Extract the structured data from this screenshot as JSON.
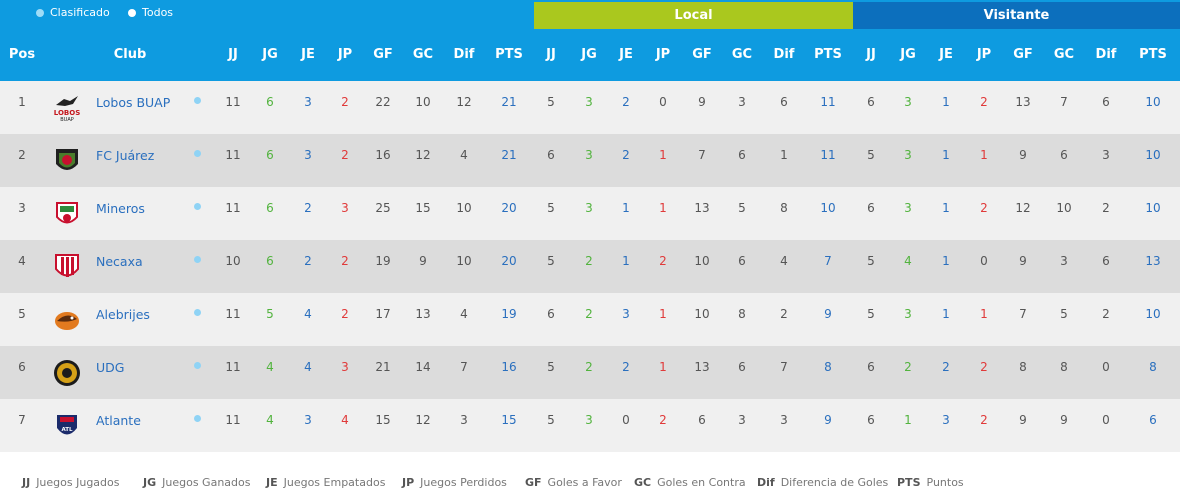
{
  "filters": [
    {
      "label": "Clasificado",
      "dot_color": "#9fdcf7"
    },
    {
      "label": "Todos",
      "dot_color": "#ffffff"
    }
  ],
  "sections": {
    "local": "Local",
    "visitante": "Visitante"
  },
  "headers": {
    "pos": "Pos",
    "club": "Club",
    "cols": [
      "JJ",
      "JG",
      "JE",
      "JP",
      "GF",
      "GC",
      "Dif",
      "PTS",
      "JJ",
      "JG",
      "JE",
      "JP",
      "GF",
      "GC",
      "Dif",
      "PTS",
      "JJ",
      "JG",
      "JE",
      "JP",
      "GF",
      "GC",
      "Dif",
      "PTS"
    ]
  },
  "rows": [
    {
      "pos": "1",
      "club": "Lobos BUAP",
      "crest": "lobos-buap-crest",
      "t": [
        "11",
        "6",
        "3",
        "2",
        "22",
        "10",
        "12",
        "21"
      ],
      "l": [
        "5",
        "3",
        "2",
        "0",
        "9",
        "3",
        "6",
        "11"
      ],
      "v": [
        "6",
        "3",
        "1",
        "2",
        "13",
        "7",
        "6",
        "10"
      ]
    },
    {
      "pos": "2",
      "club": "FC Juárez",
      "crest": "fc-juarez-crest",
      "t": [
        "11",
        "6",
        "3",
        "2",
        "16",
        "12",
        "4",
        "21"
      ],
      "l": [
        "6",
        "3",
        "2",
        "1",
        "7",
        "6",
        "1",
        "11"
      ],
      "v": [
        "5",
        "3",
        "1",
        "1",
        "9",
        "6",
        "3",
        "10"
      ]
    },
    {
      "pos": "3",
      "club": "Mineros",
      "crest": "mineros-crest",
      "t": [
        "11",
        "6",
        "2",
        "3",
        "25",
        "15",
        "10",
        "20"
      ],
      "l": [
        "5",
        "3",
        "1",
        "1",
        "13",
        "5",
        "8",
        "10"
      ],
      "v": [
        "6",
        "3",
        "1",
        "2",
        "12",
        "10",
        "2",
        "10"
      ]
    },
    {
      "pos": "4",
      "club": "Necaxa",
      "crest": "necaxa-crest",
      "t": [
        "10",
        "6",
        "2",
        "2",
        "19",
        "9",
        "10",
        "20"
      ],
      "l": [
        "5",
        "2",
        "1",
        "2",
        "10",
        "6",
        "4",
        "7"
      ],
      "v": [
        "5",
        "4",
        "1",
        "0",
        "9",
        "3",
        "6",
        "13"
      ]
    },
    {
      "pos": "5",
      "club": "Alebrijes",
      "crest": "alebrijes-crest",
      "t": [
        "11",
        "5",
        "4",
        "2",
        "17",
        "13",
        "4",
        "19"
      ],
      "l": [
        "6",
        "2",
        "3",
        "1",
        "10",
        "8",
        "2",
        "9"
      ],
      "v": [
        "5",
        "3",
        "1",
        "1",
        "7",
        "5",
        "2",
        "10"
      ]
    },
    {
      "pos": "6",
      "club": "UDG",
      "crest": "udg-crest",
      "t": [
        "11",
        "4",
        "4",
        "3",
        "21",
        "14",
        "7",
        "16"
      ],
      "l": [
        "5",
        "2",
        "2",
        "1",
        "13",
        "6",
        "7",
        "8"
      ],
      "v": [
        "6",
        "2",
        "2",
        "2",
        "8",
        "8",
        "0",
        "8"
      ]
    },
    {
      "pos": "7",
      "club": "Atlante",
      "crest": "atlante-crest",
      "t": [
        "11",
        "4",
        "3",
        "4",
        "15",
        "12",
        "3",
        "15"
      ],
      "l": [
        "5",
        "3",
        "0",
        "2",
        "6",
        "3",
        "3",
        "9"
      ],
      "v": [
        "6",
        "1",
        "3",
        "2",
        "9",
        "9",
        "0",
        "6"
      ]
    }
  ],
  "glossary": [
    {
      "abbr": "JJ",
      "text": "Juegos Jugados"
    },
    {
      "abbr": "JG",
      "text": "Juegos Ganados"
    },
    {
      "abbr": "JE",
      "text": "Juegos Empatados"
    },
    {
      "abbr": "JP",
      "text": "Juegos Perdidos"
    },
    {
      "abbr": "GF",
      "text": "Goles a Favor"
    },
    {
      "abbr": "GC",
      "text": "Goles en Contra"
    },
    {
      "abbr": "Dif",
      "text": "Diferencia de Goles"
    },
    {
      "abbr": "PTS",
      "text": "Puntos"
    }
  ],
  "colors": {
    "header_blue": "#0e9be0",
    "local_green": "#aac81e",
    "visitante_blue": "#0c6fbd",
    "win_green": "#52b33e",
    "draw_blue": "#2a6fbe",
    "loss_red": "#e03a3a",
    "qualified_dot": "#8fd3f5"
  }
}
